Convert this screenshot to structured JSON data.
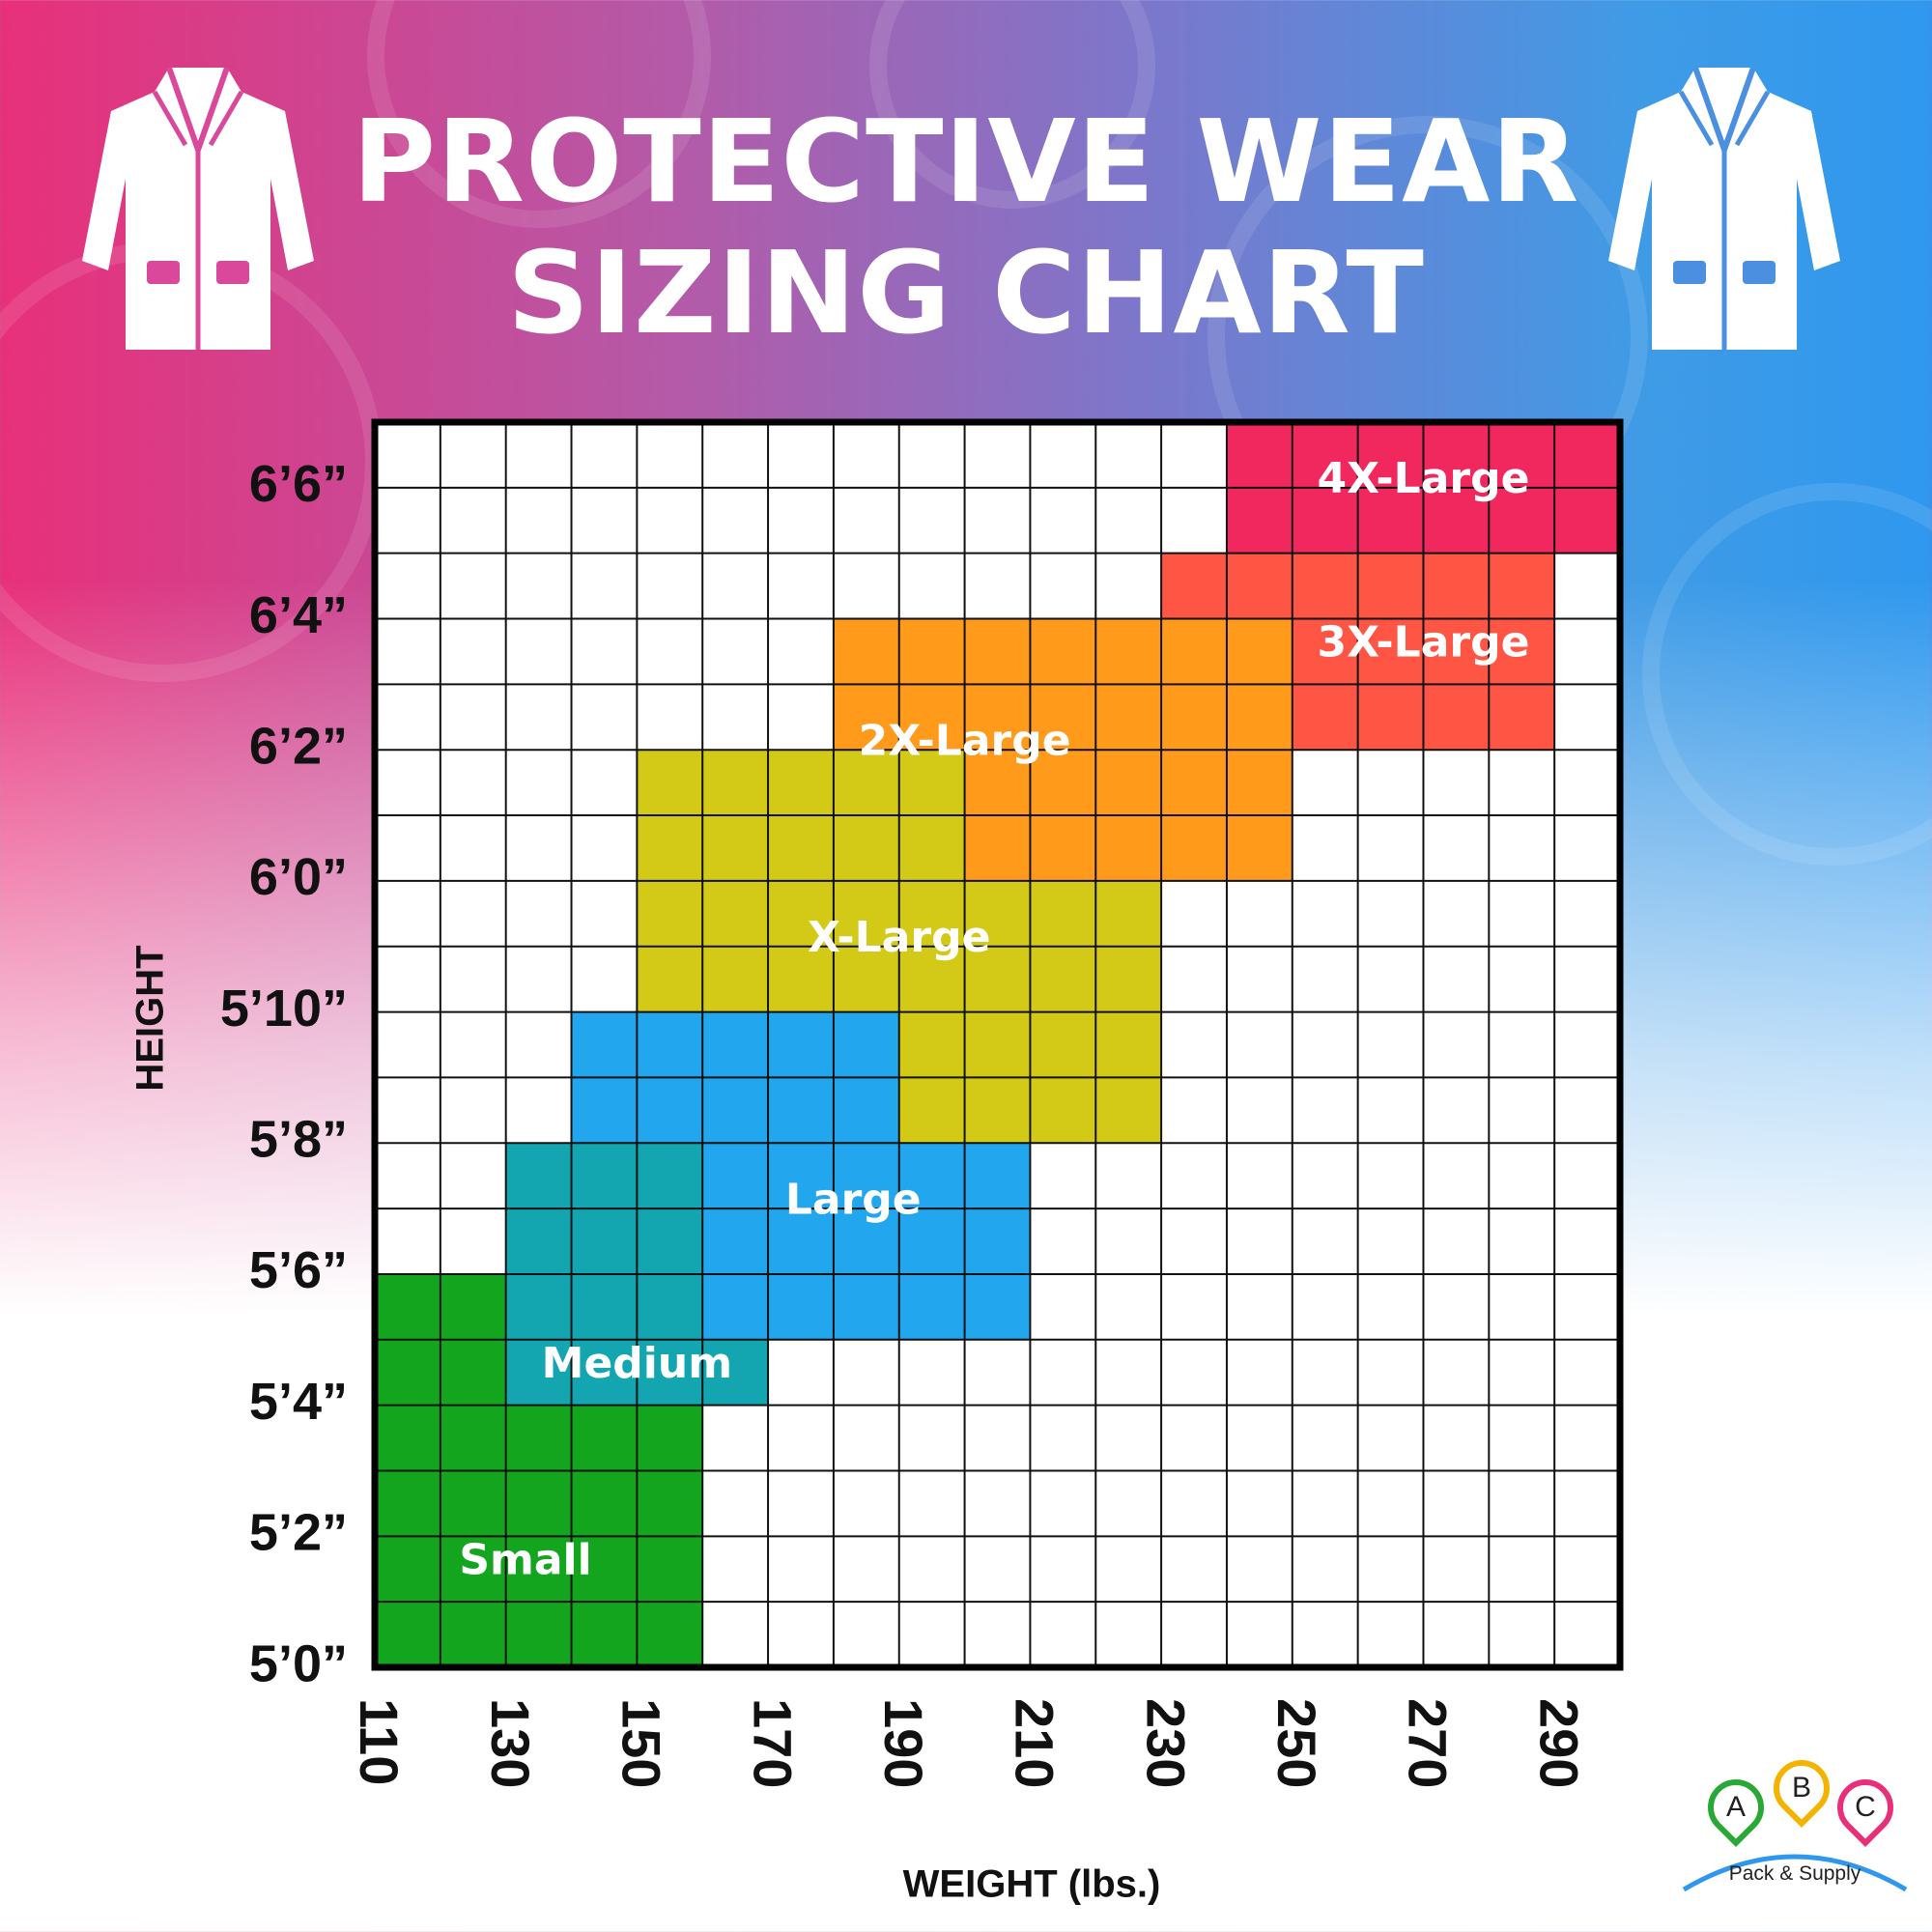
{
  "header": {
    "title_line1": "PROTECTIVE WEAR",
    "title_line2": "SIZING CHART"
  },
  "logo": {
    "pins": [
      "A",
      "B",
      "C"
    ],
    "pin_colors": [
      "#2aa836",
      "#f2b400",
      "#e8307a"
    ],
    "name": "Pack & Supply"
  },
  "icons": [
    "lab-coat-icon",
    "lab-coat-icon"
  ],
  "chart_data": {
    "type": "heatmap",
    "xlabel": "WEIGHT (lbs.)",
    "ylabel": "HEIGHT",
    "x_ticks": [
      "110",
      "130",
      "150",
      "170",
      "190",
      "210",
      "230",
      "250",
      "270",
      "290"
    ],
    "x_tick_values": [
      110,
      130,
      150,
      170,
      190,
      210,
      230,
      250,
      270,
      290
    ],
    "y_ticks": [
      "5’0”",
      "5’2”",
      "5’4”",
      "5’6”",
      "5’8”",
      "5’10”",
      "6’0”",
      "6’2”",
      "6’4”",
      "6’6”"
    ],
    "y_tick_values": [
      60,
      62,
      64,
      66,
      68,
      70,
      72,
      74,
      76,
      78
    ],
    "xlim": [
      110,
      300
    ],
    "ylim": [
      60,
      79
    ],
    "grid": true,
    "grid_step": {
      "x": 10,
      "y": 1
    },
    "regions": [
      {
        "name": "Small",
        "color": "#14a51f",
        "label_at": [
          133,
          61.6
        ],
        "rects": [
          [
            110,
            60,
            160,
            66
          ]
        ]
      },
      {
        "name": "Medium",
        "color": "#13a6b0",
        "label_at": [
          150,
          64.6
        ],
        "rects": [
          [
            130,
            64,
            170,
            66
          ],
          [
            130,
            66,
            160,
            68
          ]
        ]
      },
      {
        "name": "Large",
        "color": "#22a7ee",
        "label_at": [
          183,
          67.1
        ],
        "rects": [
          [
            160,
            65,
            210,
            68
          ],
          [
            140,
            68,
            190,
            70
          ]
        ]
      },
      {
        "name": "X-Large",
        "color": "#d2ca16",
        "label_at": [
          190,
          71.1
        ],
        "rects": [
          [
            190,
            68,
            230,
            72
          ],
          [
            150,
            70,
            200,
            74
          ],
          [
            200,
            72,
            230,
            73
          ]
        ]
      },
      {
        "name": "2X-Large",
        "color": "#ff9a1a",
        "label_at": [
          200,
          74.1
        ],
        "rects": [
          [
            200,
            72,
            250,
            74
          ],
          [
            180,
            74,
            250,
            76
          ]
        ]
      },
      {
        "name": "3X-Large",
        "color": "#ff5544",
        "label_at": [
          270,
          75.6
        ],
        "rects": [
          [
            250,
            74,
            290,
            77
          ],
          [
            230,
            76,
            250,
            77
          ]
        ]
      },
      {
        "name": "4X-Large",
        "color": "#f0285e",
        "label_at": [
          270,
          78.1
        ],
        "rects": [
          [
            240,
            77,
            300,
            79
          ]
        ]
      }
    ]
  }
}
